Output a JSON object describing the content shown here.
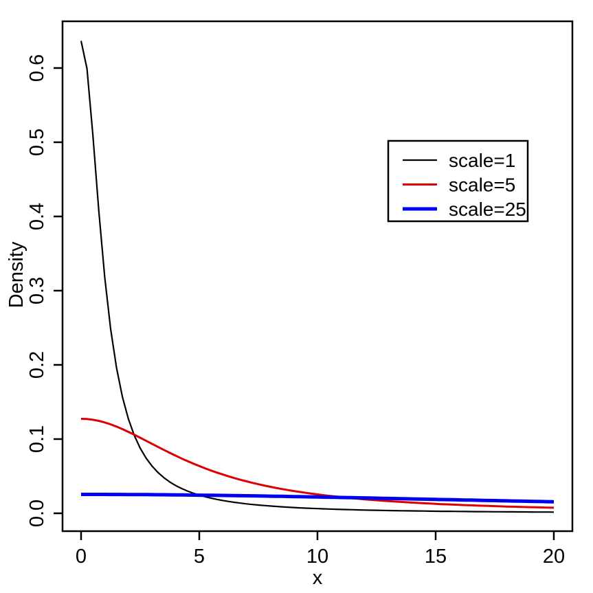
{
  "figure": {
    "background": "#ffffff",
    "axis_color": "#000000",
    "text_color": "#000000"
  },
  "chart_data": {
    "type": "line",
    "title": "",
    "xlabel": "x",
    "ylabel": "Density",
    "grid": false,
    "xlim": [
      0,
      20
    ],
    "ylim": [
      0,
      0.65
    ],
    "x_ticks": [
      0,
      5,
      10,
      15,
      20
    ],
    "x_tick_labels": [
      "0",
      "5",
      "10",
      "15",
      "20"
    ],
    "y_ticks": [
      0.0,
      0.1,
      0.2,
      0.3,
      0.4,
      0.5,
      0.6
    ],
    "y_tick_labels": [
      "0.0",
      "0.1",
      "0.2",
      "0.3",
      "0.4",
      "0.5",
      "0.6"
    ],
    "legend": {
      "position": "topright-inside",
      "border": true
    },
    "x": [
      0,
      0.25,
      0.5,
      0.75,
      1,
      1.25,
      1.5,
      1.75,
      2,
      2.25,
      2.5,
      2.75,
      3,
      3.25,
      3.5,
      3.75,
      4,
      4.25,
      4.5,
      4.75,
      5,
      5.25,
      5.5,
      5.75,
      6,
      6.25,
      6.5,
      6.75,
      7,
      7.25,
      7.5,
      7.75,
      8,
      8.25,
      8.5,
      8.75,
      9,
      9.25,
      9.5,
      9.75,
      10,
      10.25,
      10.5,
      10.75,
      11,
      11.25,
      11.5,
      11.75,
      12,
      12.25,
      12.5,
      12.75,
      13,
      13.25,
      13.5,
      13.75,
      14,
      14.25,
      14.5,
      14.75,
      15,
      15.25,
      15.5,
      15.75,
      16,
      16.25,
      16.5,
      16.75,
      17,
      17.25,
      17.5,
      17.75,
      18,
      18.25,
      18.5,
      18.75,
      19,
      19.25,
      19.5,
      19.75,
      20
    ],
    "series": [
      {
        "name": "scale=1",
        "color": "#000000",
        "line_width": 2.2,
        "values": [
          0.63662,
          0.59917,
          0.5093,
          0.40744,
          0.31831,
          0.24844,
          0.19588,
          0.1567,
          0.12732,
          0.10501,
          0.08781,
          0.07435,
          0.06366,
          0.05506,
          0.04804,
          0.04226,
          0.03745,
          0.0334,
          0.02996,
          0.02702,
          0.02449,
          0.02229,
          0.02037,
          0.01869,
          0.01721,
          0.01589,
          0.01472,
          0.01367,
          0.01273,
          0.01189,
          0.01112,
          0.01043,
          0.00979,
          0.00922,
          0.00869,
          0.00821,
          0.00776,
          0.00735,
          0.00698,
          0.00663,
          0.0063,
          0.006,
          0.00572,
          0.00546,
          0.00522,
          0.00499,
          0.00478,
          0.00458,
          0.00439,
          0.00421,
          0.00405,
          0.00389,
          0.00374,
          0.00361,
          0.00347,
          0.00335,
          0.00323,
          0.00312,
          0.00301,
          0.00291,
          0.00282,
          0.00273,
          0.00264,
          0.00256,
          0.00248,
          0.0024,
          0.00233,
          0.00226,
          0.0022,
          0.00213,
          0.00207,
          0.00201,
          0.00196,
          0.00191,
          0.00185,
          0.00181,
          0.00176,
          0.00171,
          0.00167,
          0.00163,
          0.00159
        ]
      },
      {
        "name": "scale=5",
        "color": "#dd0000",
        "line_width": 3,
        "values": [
          0.12732,
          0.12701,
          0.12606,
          0.12452,
          0.12243,
          0.11983,
          0.11681,
          0.11343,
          0.10976,
          0.10588,
          0.10186,
          0.09775,
          0.09362,
          0.08951,
          0.08545,
          0.08149,
          0.07764,
          0.07392,
          0.07034,
          0.06693,
          0.06366,
          0.06056,
          0.05761,
          0.05482,
          0.05218,
          0.04969,
          0.04733,
          0.04511,
          0.04301,
          0.04104,
          0.03918,
          0.03742,
          0.03576,
          0.0342,
          0.03273,
          0.03134,
          0.03003,
          0.02879,
          0.02762,
          0.02651,
          0.02546,
          0.02447,
          0.02353,
          0.02264,
          0.0218,
          0.021,
          0.02024,
          0.01952,
          0.01883,
          0.01818,
          0.01756,
          0.01697,
          0.01641,
          0.01587,
          0.01536,
          0.01487,
          0.0144,
          0.01396,
          0.01353,
          0.01312,
          0.01273,
          0.01236,
          0.012,
          0.01166,
          0.01133,
          0.01101,
          0.01071,
          0.01042,
          0.01014,
          0.00987,
          0.00961,
          0.00936,
          0.00912,
          0.00889,
          0.00867,
          0.00845,
          0.00825,
          0.00805,
          0.00785,
          0.00767,
          0.00749
        ]
      },
      {
        "name": "scale=25",
        "color": "#0000ee",
        "line_width": 5,
        "values": [
          0.02546,
          0.02546,
          0.02545,
          0.02544,
          0.02542,
          0.0254,
          0.02537,
          0.02534,
          0.0253,
          0.02526,
          0.02521,
          0.02516,
          0.0251,
          0.02504,
          0.02498,
          0.0249,
          0.02483,
          0.02475,
          0.02467,
          0.02458,
          0.02449,
          0.02439,
          0.02429,
          0.02419,
          0.02408,
          0.02397,
          0.02385,
          0.02373,
          0.02361,
          0.02349,
          0.02336,
          0.02323,
          0.0231,
          0.02296,
          0.02283,
          0.02269,
          0.02254,
          0.0224,
          0.02225,
          0.0221,
          0.02195,
          0.0218,
          0.02165,
          0.02149,
          0.02133,
          0.02118,
          0.02102,
          0.02086,
          0.0207,
          0.02053,
          0.02037,
          0.02021,
          0.02004,
          0.01988,
          0.01972,
          0.01955,
          0.01938,
          0.01922,
          0.01905,
          0.01889,
          0.01872,
          0.01856,
          0.01839,
          0.01823,
          0.01806,
          0.0179,
          0.01774,
          0.01757,
          0.01741,
          0.01725,
          0.01709,
          0.01693,
          0.01677,
          0.01661,
          0.01645,
          0.0163,
          0.01614,
          0.01599,
          0.01583,
          0.01568,
          0.01553
        ]
      }
    ]
  }
}
